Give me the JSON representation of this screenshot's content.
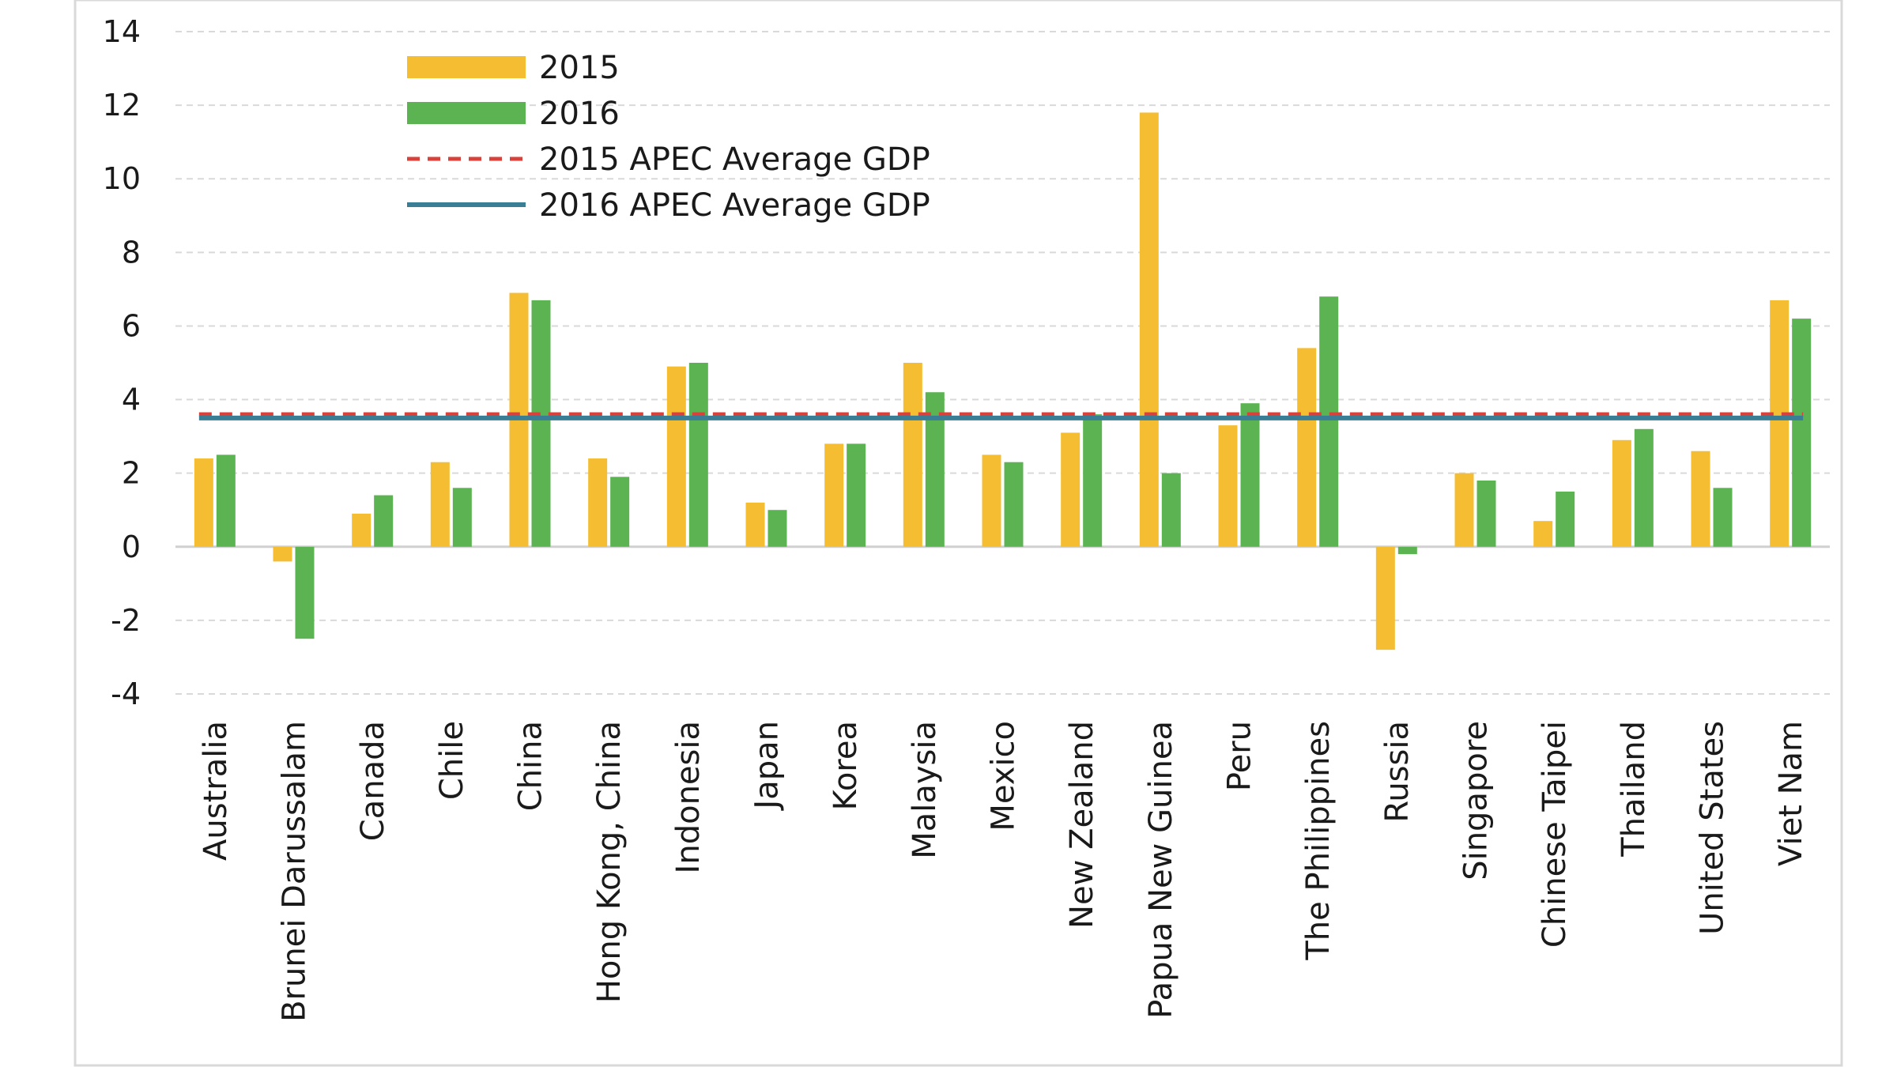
{
  "chart_data": {
    "type": "bar",
    "title": "",
    "xlabel": "",
    "ylabel": "",
    "ylim": [
      -4,
      14
    ],
    "yticks": [
      14,
      12,
      10,
      8,
      6,
      4,
      2,
      0,
      -2,
      -4
    ],
    "grid": true,
    "legend_position": "top-left",
    "categories": [
      "Australia",
      "Brunei Darussalam",
      "Canada",
      "Chile",
      "China",
      "Hong Kong, China",
      "Indonesia",
      "Japan",
      "Korea",
      "Malaysia",
      "Mexico",
      "New Zealand",
      "Papua New Guinea",
      "Peru",
      "The Philippines",
      "Russia",
      "Singapore",
      "Chinese Taipei",
      "Thailand",
      "United States",
      "Viet Nam"
    ],
    "series": [
      {
        "name": "2015",
        "color": "#F5BE32",
        "values": [
          2.4,
          -0.4,
          0.9,
          2.3,
          6.9,
          2.4,
          4.9,
          1.2,
          2.8,
          5.0,
          2.5,
          3.1,
          11.8,
          3.3,
          5.4,
          -2.8,
          2.0,
          0.7,
          2.9,
          2.6,
          6.7
        ]
      },
      {
        "name": "2016",
        "color": "#5BB451",
        "values": [
          2.5,
          -2.5,
          1.4,
          1.6,
          6.7,
          1.9,
          5.0,
          1.0,
          2.8,
          4.2,
          2.3,
          3.6,
          2.0,
          3.9,
          6.8,
          -0.2,
          1.8,
          1.5,
          3.2,
          1.6,
          6.2
        ]
      }
    ],
    "reference_lines": [
      {
        "name": "2015 APEC Average GDP",
        "value": 3.6,
        "color": "#D9423A",
        "style": "dashed"
      },
      {
        "name": "2016 APEC Average GDP",
        "value": 3.5,
        "color": "#3A7E96",
        "style": "solid"
      }
    ]
  }
}
